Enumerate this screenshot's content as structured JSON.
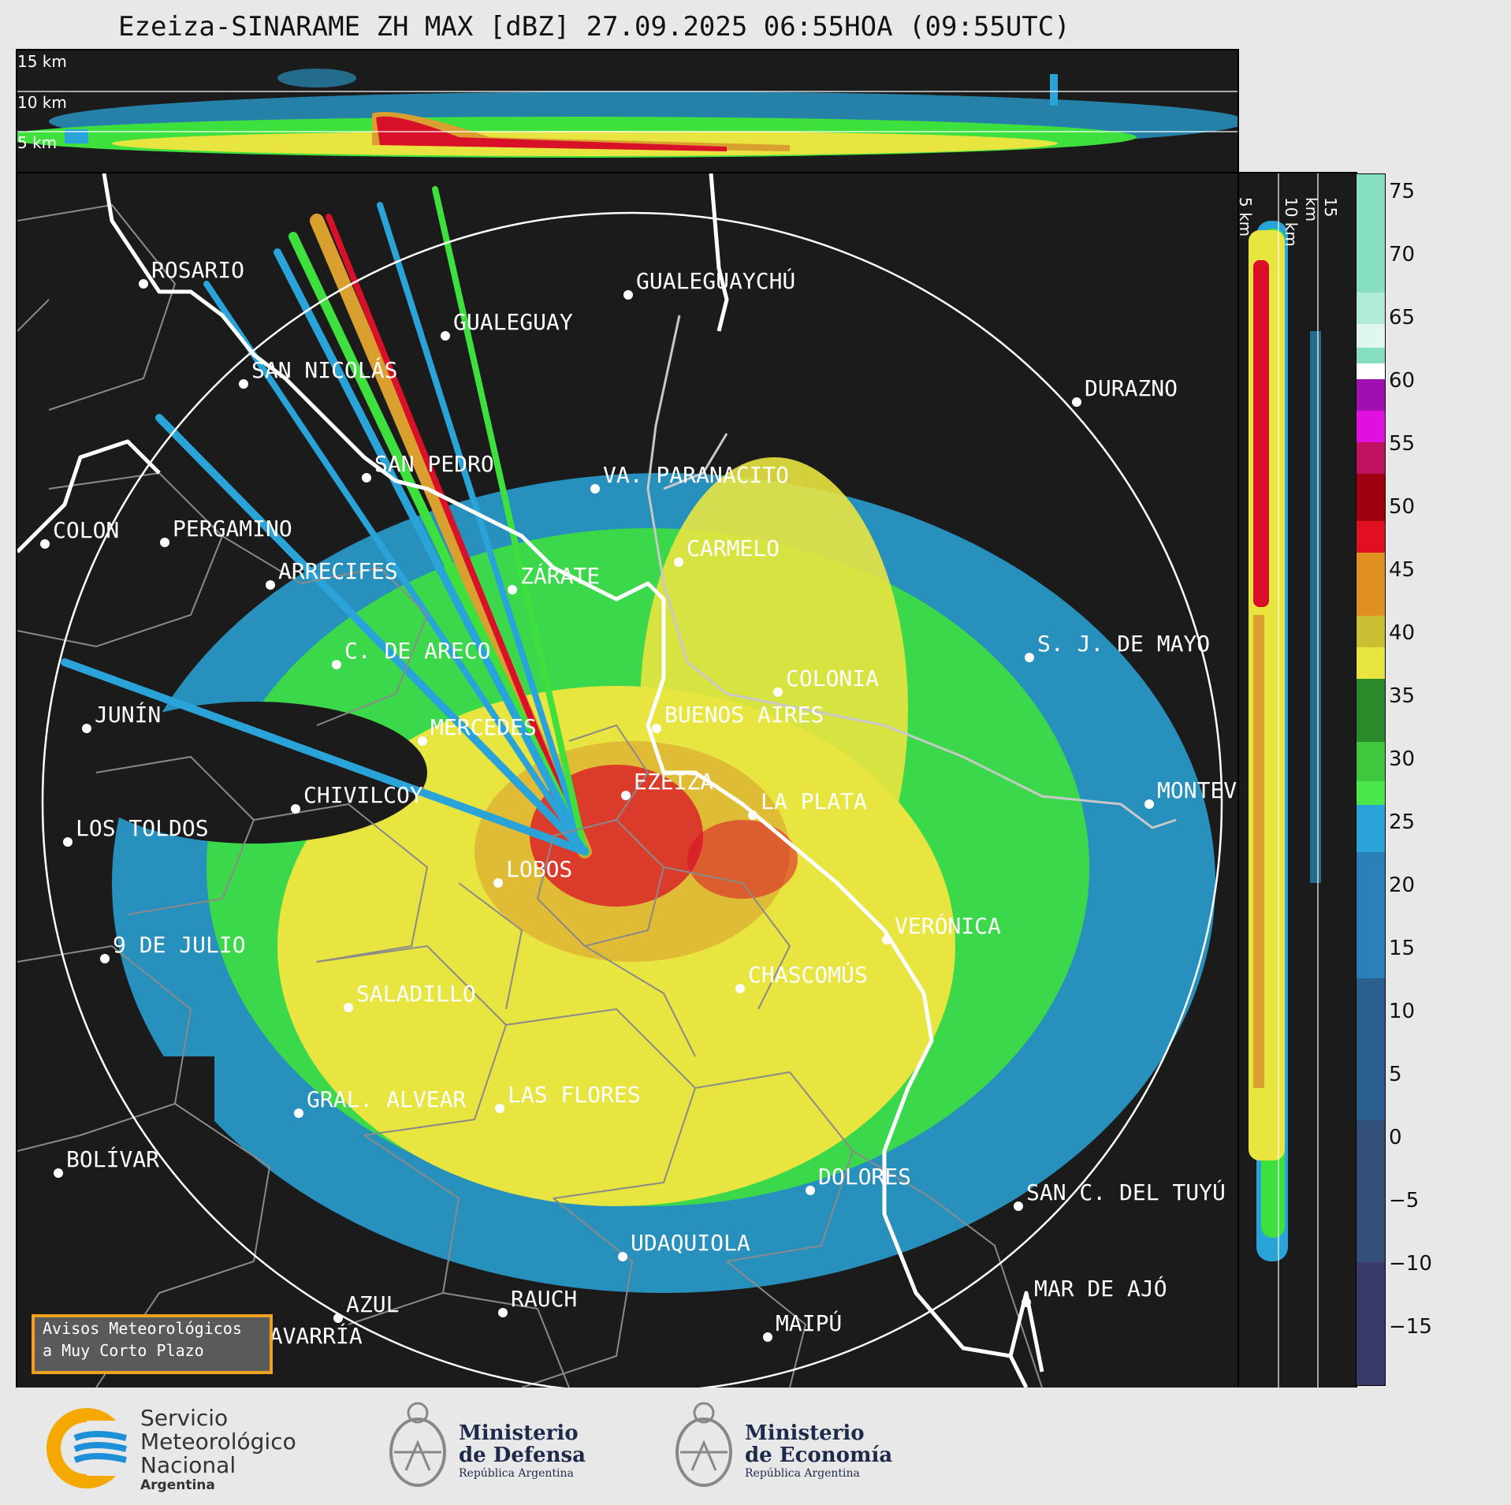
{
  "title": "Ezeiza-SINARAME ZH MAX [dBZ] 27.09.2025 06:55HOA (09:55UTC)",
  "top_panel": {
    "altitude_labels": [
      "15 km",
      "10 km",
      "5 km"
    ]
  },
  "side_panel": {
    "altitude_labels": [
      "5 km",
      "10 km",
      "15 km"
    ]
  },
  "colorbar": {
    "ticks": [
      "75",
      "70",
      "65",
      "60",
      "55",
      "50",
      "45",
      "40",
      "35",
      "30",
      "25",
      "20",
      "15",
      "10",
      "5",
      "0",
      "−5",
      "−10",
      "−15"
    ]
  },
  "cities": [
    {
      "name": "ROSARIO"
    },
    {
      "name": "GUALEGUAYCHÚ"
    },
    {
      "name": "GUALEGUAY"
    },
    {
      "name": "SAN NICOLÁS"
    },
    {
      "name": "DURAZNO"
    },
    {
      "name": "SAN PEDRO"
    },
    {
      "name": "VA. PARANACITO"
    },
    {
      "name": "COLON"
    },
    {
      "name": "PERGAMINO"
    },
    {
      "name": "CARMELO"
    },
    {
      "name": "ARRECIFES"
    },
    {
      "name": "ZÁRATE"
    },
    {
      "name": "C. DE ARECO"
    },
    {
      "name": "S. J. DE MAYO"
    },
    {
      "name": "COLONIA"
    },
    {
      "name": "JUNÍN"
    },
    {
      "name": "MERCEDES"
    },
    {
      "name": "BUENOS AIRES"
    },
    {
      "name": "CHIVILCOY"
    },
    {
      "name": "EZEIZA"
    },
    {
      "name": "MONTEV"
    },
    {
      "name": "LA PLATA"
    },
    {
      "name": "LOS TOLDOS"
    },
    {
      "name": "LOBOS"
    },
    {
      "name": "VERÓNICA"
    },
    {
      "name": "9 DE JULIO"
    },
    {
      "name": "CHASCOMÚS"
    },
    {
      "name": "SALADILLO"
    },
    {
      "name": "GRAL. ALVEAR"
    },
    {
      "name": "LAS FLORES"
    },
    {
      "name": "BOLÍVAR"
    },
    {
      "name": "DOLORES"
    },
    {
      "name": "SAN C. DEL TUYÚ"
    },
    {
      "name": "UDAQUIOLA"
    },
    {
      "name": "MAR DE AJÓ"
    },
    {
      "name": "AZUL"
    },
    {
      "name": "RAUCH"
    },
    {
      "name": "OLAVARRÍA"
    },
    {
      "name": "MAIPÚ"
    }
  ],
  "alert_box": {
    "line1": "Avisos Meteorológicos",
    "line2": "a Muy Corto Plazo"
  },
  "footer": {
    "smn": {
      "line1": "Servicio",
      "line2": "Meteorológico",
      "line3": "Nacional",
      "line4": "Argentina"
    },
    "defensa": {
      "line1": "Ministerio",
      "line2": "de Defensa",
      "line3": "República Argentina"
    },
    "economia": {
      "line1": "Ministerio",
      "line2": "de Economía",
      "line3": "República Argentina"
    }
  }
}
